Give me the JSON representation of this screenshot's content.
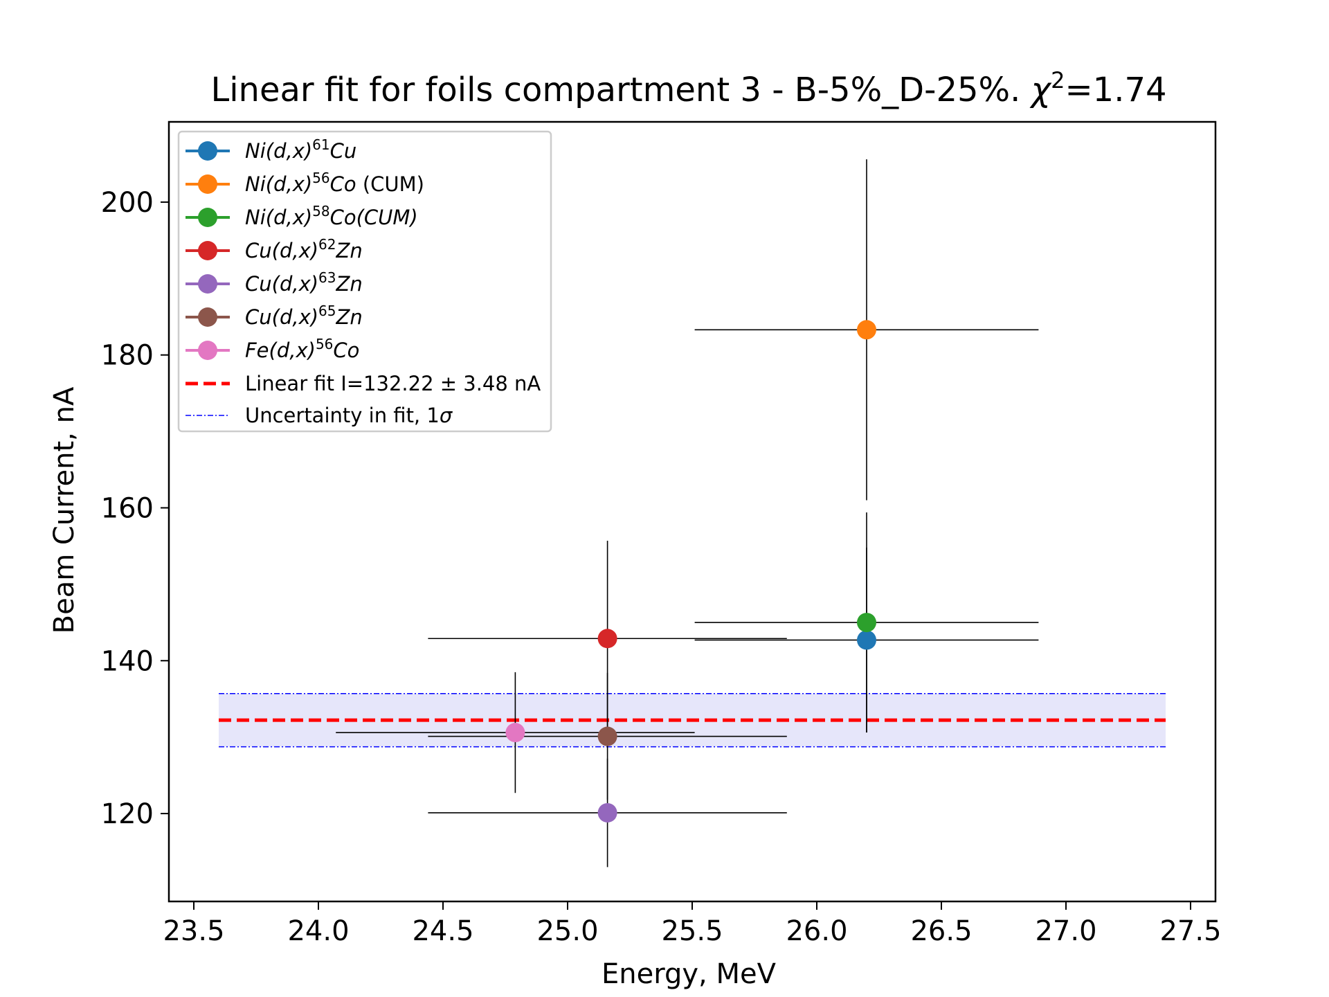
{
  "chart_data": {
    "type": "scatter",
    "title": "Linear fit for foils compartment 3 - B-5%_D-25%. χ²=1.74",
    "title_parts": {
      "main": "Linear fit for foils compartment 3 - B-5%_D-25%. ",
      "chi": "χ",
      "sup": "2",
      "tail": "=1.74"
    },
    "xlabel": "Energy, MeV",
    "ylabel": "Beam Current, nA",
    "xlim": [
      23.4,
      27.6
    ],
    "ylim": [
      108.5,
      210.5
    ],
    "xticks": [
      "23.5",
      "24.0",
      "24.5",
      "25.0",
      "25.5",
      "26.0",
      "26.5",
      "27.0",
      "27.5"
    ],
    "yticks": [
      "120",
      "140",
      "160",
      "180",
      "200"
    ],
    "legend_position": "upper-left",
    "grid": false,
    "series": [
      {
        "name": "Ni(d,x)61Cu",
        "base": "Ni(d,x)",
        "sup": "61",
        "product": "Cu",
        "suffix": "",
        "color": "#1f77b4",
        "x": 26.2,
        "y": 142.7,
        "xerr": 0.69,
        "yerr": 12.1
      },
      {
        "name": "Ni(d,x)56Co (CUM)",
        "base": "Ni(d,x)",
        "sup": "56",
        "product": "Co",
        "suffix": " (CUM)",
        "color": "#ff7f0e",
        "x": 26.2,
        "y": 183.3,
        "xerr": 0.69,
        "yerr": 22.3
      },
      {
        "name": "Ni(d,x)58Co(CUM)",
        "base": "Ni(d,x)",
        "sup": "58",
        "product": "Co(CUM)",
        "suffix": "",
        "color": "#2ca02c",
        "x": 26.2,
        "y": 145.0,
        "xerr": 0.69,
        "yerr": 14.4
      },
      {
        "name": "Cu(d,x)62Zn",
        "base": "Cu(d,x)",
        "sup": "62",
        "product": "Zn",
        "suffix": "",
        "color": "#d62728",
        "x": 25.16,
        "y": 142.9,
        "xerr": 0.72,
        "yerr": 12.8
      },
      {
        "name": "Cu(d,x)63Zn",
        "base": "Cu(d,x)",
        "sup": "63",
        "product": "Zn",
        "suffix": "",
        "color": "#9467bd",
        "x": 25.16,
        "y": 120.1,
        "xerr": 0.72,
        "yerr": 7.1
      },
      {
        "name": "Cu(d,x)65Zn",
        "base": "Cu(d,x)",
        "sup": "65",
        "product": "Zn",
        "suffix": "",
        "color": "#8c564b",
        "x": 25.16,
        "y": 130.1,
        "xerr": 0.72,
        "yerr": 8.3
      },
      {
        "name": "Fe(d,x)56Co",
        "base": "Fe(d,x)",
        "sup": "56",
        "product": "Co",
        "suffix": "",
        "color": "#e377c2",
        "x": 24.79,
        "y": 130.6,
        "xerr": 0.72,
        "yerr": 7.9
      }
    ],
    "fit": {
      "label": "Linear fit I=132.22 ± 3.48 nA",
      "value": 132.22,
      "uncertainty": 3.48,
      "x_range": [
        23.6,
        27.4
      ],
      "color": "#ff0000"
    },
    "band": {
      "label": "Uncertainty in fit, 1σ",
      "color": "#0000ff",
      "fill": "#e6e6fa"
    }
  }
}
